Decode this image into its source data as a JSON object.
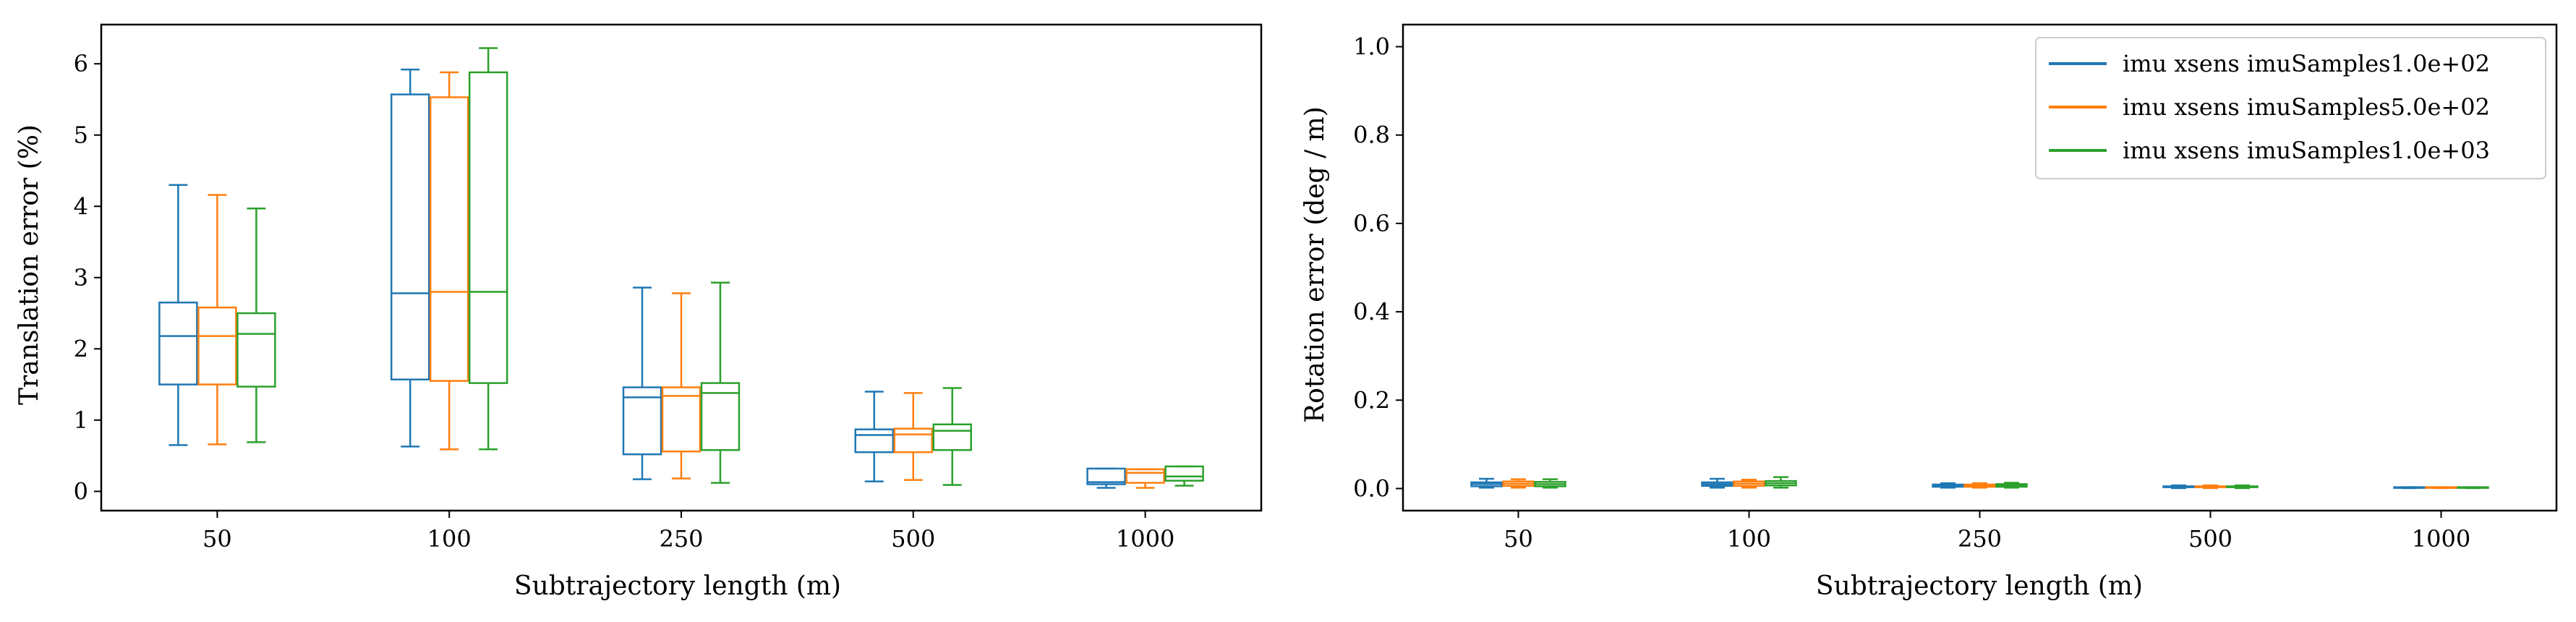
{
  "colors": {
    "series": [
      "#1f77b4",
      "#ff7f0e",
      "#2ca02c"
    ],
    "axes": "#000000",
    "background": "#ffffff"
  },
  "chart_data": [
    {
      "type": "boxplot",
      "title": "",
      "xlabel": "Subtrajectory length (m)",
      "ylabel": "Translation error (%)",
      "categories": [
        "50",
        "100",
        "250",
        "500",
        "1000"
      ],
      "ylim": [
        -0.27,
        6.55
      ],
      "yticks": [
        0,
        1,
        2,
        3,
        4,
        5,
        6
      ],
      "ytick_labels": [
        "0",
        "1",
        "2",
        "3",
        "4",
        "5",
        "6"
      ],
      "grid": false,
      "legend": null,
      "series": [
        {
          "name": "imu xsens imuSamples1.0e+02",
          "boxes": [
            {
              "whislo": 0.65,
              "q1": 1.5,
              "med": 2.18,
              "q3": 2.65,
              "whishi": 4.3
            },
            {
              "whislo": 0.63,
              "q1": 1.57,
              "med": 2.78,
              "q3": 5.57,
              "whishi": 5.92
            },
            {
              "whislo": 0.17,
              "q1": 0.52,
              "med": 1.32,
              "q3": 1.46,
              "whishi": 2.86
            },
            {
              "whislo": 0.14,
              "q1": 0.55,
              "med": 0.79,
              "q3": 0.87,
              "whishi": 1.4
            },
            {
              "whislo": 0.05,
              "q1": 0.1,
              "med": 0.13,
              "q3": 0.32,
              "whishi": 0.32
            }
          ]
        },
        {
          "name": "imu xsens imuSamples5.0e+02",
          "boxes": [
            {
              "whislo": 0.66,
              "q1": 1.5,
              "med": 2.18,
              "q3": 2.58,
              "whishi": 4.16
            },
            {
              "whislo": 0.59,
              "q1": 1.55,
              "med": 2.8,
              "q3": 5.53,
              "whishi": 5.88
            },
            {
              "whislo": 0.18,
              "q1": 0.56,
              "med": 1.34,
              "q3": 1.46,
              "whishi": 2.78
            },
            {
              "whislo": 0.16,
              "q1": 0.55,
              "med": 0.8,
              "q3": 0.88,
              "whishi": 1.38
            },
            {
              "whislo": 0.05,
              "q1": 0.12,
              "med": 0.26,
              "q3": 0.31,
              "whishi": 0.31
            }
          ]
        },
        {
          "name": "imu xsens imuSamples1.0e+03",
          "boxes": [
            {
              "whislo": 0.69,
              "q1": 1.47,
              "med": 2.21,
              "q3": 2.5,
              "whishi": 3.97
            },
            {
              "whislo": 0.59,
              "q1": 1.52,
              "med": 2.8,
              "q3": 5.88,
              "whishi": 6.22
            },
            {
              "whislo": 0.12,
              "q1": 0.58,
              "med": 1.38,
              "q3": 1.52,
              "whishi": 2.93
            },
            {
              "whislo": 0.09,
              "q1": 0.58,
              "med": 0.85,
              "q3": 0.94,
              "whishi": 1.45
            },
            {
              "whislo": 0.08,
              "q1": 0.15,
              "med": 0.21,
              "q3": 0.35,
              "whishi": 0.35
            }
          ]
        }
      ]
    },
    {
      "type": "boxplot",
      "title": "",
      "xlabel": "Subtrajectory length (m)",
      "ylabel": "Rotation error (deg / m)",
      "categories": [
        "50",
        "100",
        "250",
        "500",
        "1000"
      ],
      "ylim": [
        -0.05,
        1.05
      ],
      "yticks": [
        0.0,
        0.2,
        0.4,
        0.6,
        0.8,
        1.0
      ],
      "ytick_labels": [
        "0.0",
        "0.2",
        "0.4",
        "0.6",
        "0.8",
        "1.0"
      ],
      "grid": false,
      "legend": "top-right",
      "series": [
        {
          "name": "imu xsens imuSamples1.0e+02",
          "boxes": [
            {
              "whislo": 0.002,
              "q1": 0.005,
              "med": 0.01,
              "q3": 0.014,
              "whishi": 0.022
            },
            {
              "whislo": 0.002,
              "q1": 0.006,
              "med": 0.01,
              "q3": 0.014,
              "whishi": 0.022
            },
            {
              "whislo": 0.002,
              "q1": 0.004,
              "med": 0.007,
              "q3": 0.009,
              "whishi": 0.012
            },
            {
              "whislo": 0.001,
              "q1": 0.003,
              "med": 0.004,
              "q3": 0.005,
              "whishi": 0.007
            },
            {
              "whislo": 0.001,
              "q1": 0.002,
              "med": 0.002,
              "q3": 0.003,
              "whishi": 0.003
            }
          ]
        },
        {
          "name": "imu xsens imuSamples5.0e+02",
          "boxes": [
            {
              "whislo": 0.002,
              "q1": 0.006,
              "med": 0.011,
              "q3": 0.016,
              "whishi": 0.021
            },
            {
              "whislo": 0.002,
              "q1": 0.006,
              "med": 0.011,
              "q3": 0.016,
              "whishi": 0.02
            },
            {
              "whislo": 0.002,
              "q1": 0.004,
              "med": 0.007,
              "q3": 0.009,
              "whishi": 0.012
            },
            {
              "whislo": 0.001,
              "q1": 0.003,
              "med": 0.004,
              "q3": 0.005,
              "whishi": 0.007
            },
            {
              "whislo": 0.001,
              "q1": 0.002,
              "med": 0.002,
              "q3": 0.003,
              "whishi": 0.003
            }
          ]
        },
        {
          "name": "imu xsens imuSamples1.0e+03",
          "boxes": [
            {
              "whislo": 0.002,
              "q1": 0.005,
              "med": 0.01,
              "q3": 0.015,
              "whishi": 0.021
            },
            {
              "whislo": 0.002,
              "q1": 0.007,
              "med": 0.012,
              "q3": 0.017,
              "whishi": 0.026
            },
            {
              "whislo": 0.002,
              "q1": 0.004,
              "med": 0.007,
              "q3": 0.01,
              "whishi": 0.013
            },
            {
              "whislo": 0.001,
              "q1": 0.003,
              "med": 0.004,
              "q3": 0.005,
              "whishi": 0.007
            },
            {
              "whislo": 0.001,
              "q1": 0.002,
              "med": 0.002,
              "q3": 0.003,
              "whishi": 0.003
            }
          ]
        }
      ]
    }
  ]
}
